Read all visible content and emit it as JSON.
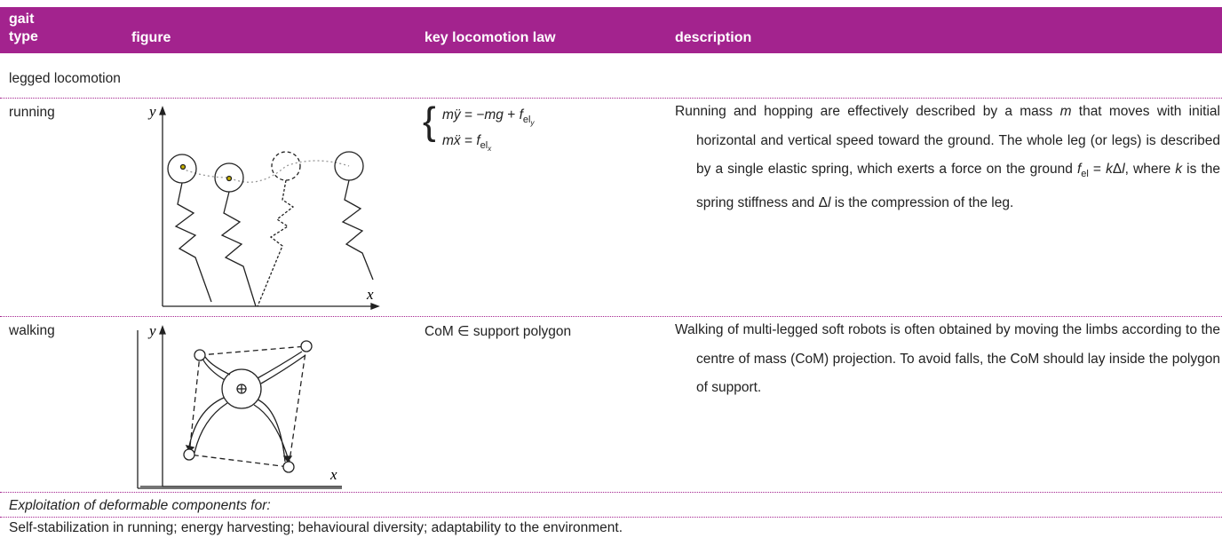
{
  "header": {
    "gait_type": "gait type",
    "figure": "figure",
    "law": "key locomotion law",
    "description": "description"
  },
  "section": "legged locomotion",
  "rows": [
    {
      "gait": "running",
      "figure": {
        "y_label": "y",
        "x_label": "x"
      },
      "law": [
        [
          "mÿ",
          " = −",
          "mg",
          " + ",
          "f",
          "el",
          "y"
        ],
        [
          "mẍ",
          " = ",
          "f",
          "el",
          "x"
        ]
      ],
      "description": [
        "Running and hopping are effectively described by a mass ",
        "m",
        " that moves with initial horizontal and vertical speed toward the ground. The whole leg (or legs) is described by a single elastic spring, which exerts a force on the ground ",
        "f",
        "el",
        " = ",
        "k",
        "Δ",
        "l",
        ", where ",
        "k",
        " is the spring stiffness and ",
        "Δ",
        "l",
        " is the compression of the leg."
      ]
    },
    {
      "gait": "walking",
      "figure": {
        "y_label": "y",
        "x_label": "x"
      },
      "law": [
        [
          "CoM ∈ support polygon"
        ]
      ],
      "description": [
        "Walking of multi-legged soft robots is often obtained by moving the limbs according to the centre of mass (CoM) projection. To avoid falls, the CoM should lay inside the polygon of support."
      ]
    }
  ],
  "footer": {
    "heading": "Exploitation of deformable components for:",
    "text": "Self-stabilization in running; energy harvesting; behavioural diversity; adaptability to the environment."
  }
}
